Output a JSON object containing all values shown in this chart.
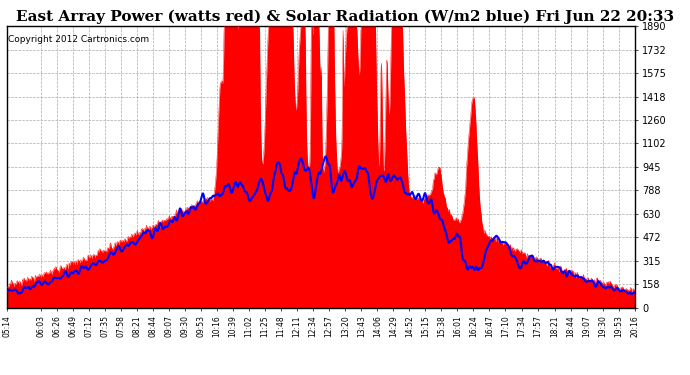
{
  "title": "East Array Power (watts red) & Solar Radiation (W/m2 blue) Fri Jun 22 20:33",
  "copyright": "Copyright 2012 Cartronics.com",
  "ylim": [
    0.0,
    1890.0
  ],
  "yticks": [
    0.0,
    157.5,
    315.0,
    472.5,
    630.0,
    787.5,
    945.0,
    1102.5,
    1260.0,
    1417.5,
    1575.0,
    1732.5,
    1890.0
  ],
  "x_labels": [
    "05:14",
    "06:03",
    "06:26",
    "06:49",
    "07:12",
    "07:35",
    "07:58",
    "08:21",
    "08:44",
    "09:07",
    "09:30",
    "09:53",
    "10:16",
    "10:39",
    "11:02",
    "11:25",
    "11:48",
    "12:11",
    "12:34",
    "12:57",
    "13:20",
    "13:43",
    "14:06",
    "14:29",
    "14:52",
    "15:15",
    "15:38",
    "16:01",
    "16:24",
    "16:47",
    "17:10",
    "17:34",
    "17:57",
    "18:21",
    "18:44",
    "19:07",
    "19:30",
    "19:53",
    "20:16"
  ],
  "bg_color": "#ffffff",
  "plot_bg": "#ffffff",
  "grid_color": "#aaaaaa",
  "red_color": "#ff0000",
  "blue_color": "#0000ff",
  "title_fontsize": 11,
  "copyright_fontsize": 6.5
}
